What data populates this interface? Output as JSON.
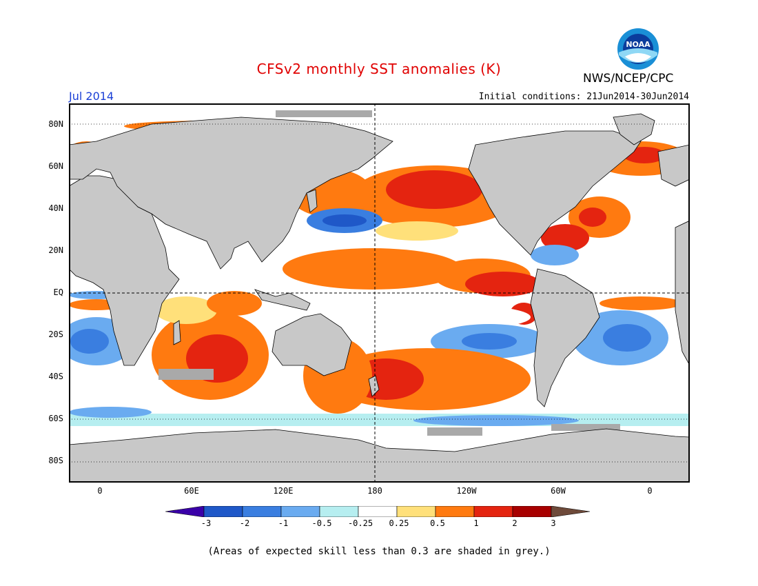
{
  "header": {
    "title": "CFSv2 monthly SST anomalies (K)",
    "agency": "NWS/NCEP/CPC",
    "logo_text": "NOAA",
    "forecast_month": "Jul 2014",
    "initial_conditions": "Initial conditions: 21Jun2014-30Jun2014"
  },
  "map": {
    "lat_labels": [
      "80N",
      "60N",
      "40N",
      "20N",
      "EQ",
      "20S",
      "40S",
      "60S",
      "80S"
    ],
    "lon_labels": [
      "0",
      "60E",
      "120E",
      "180",
      "120W",
      "60W",
      "0"
    ],
    "land_color": "#c8c8c8",
    "low_skill_color": "#a9a9a9"
  },
  "colorbar": {
    "labels": [
      "-3",
      "-2",
      "-1",
      "-0.5",
      "-0.25",
      "0.25",
      "0.5",
      "1",
      "2",
      "3"
    ],
    "colors": [
      "#3a00a8",
      "#1f58c8",
      "#3a7ee0",
      "#6aabf0",
      "#b6eef0",
      "#ffffff",
      "#ffe07a",
      "#ff7a10",
      "#e42410",
      "#a80000",
      "#6e4a3a"
    ]
  },
  "footnote": "(Areas of expected skill less than 0.3 are shaded in grey.)"
}
